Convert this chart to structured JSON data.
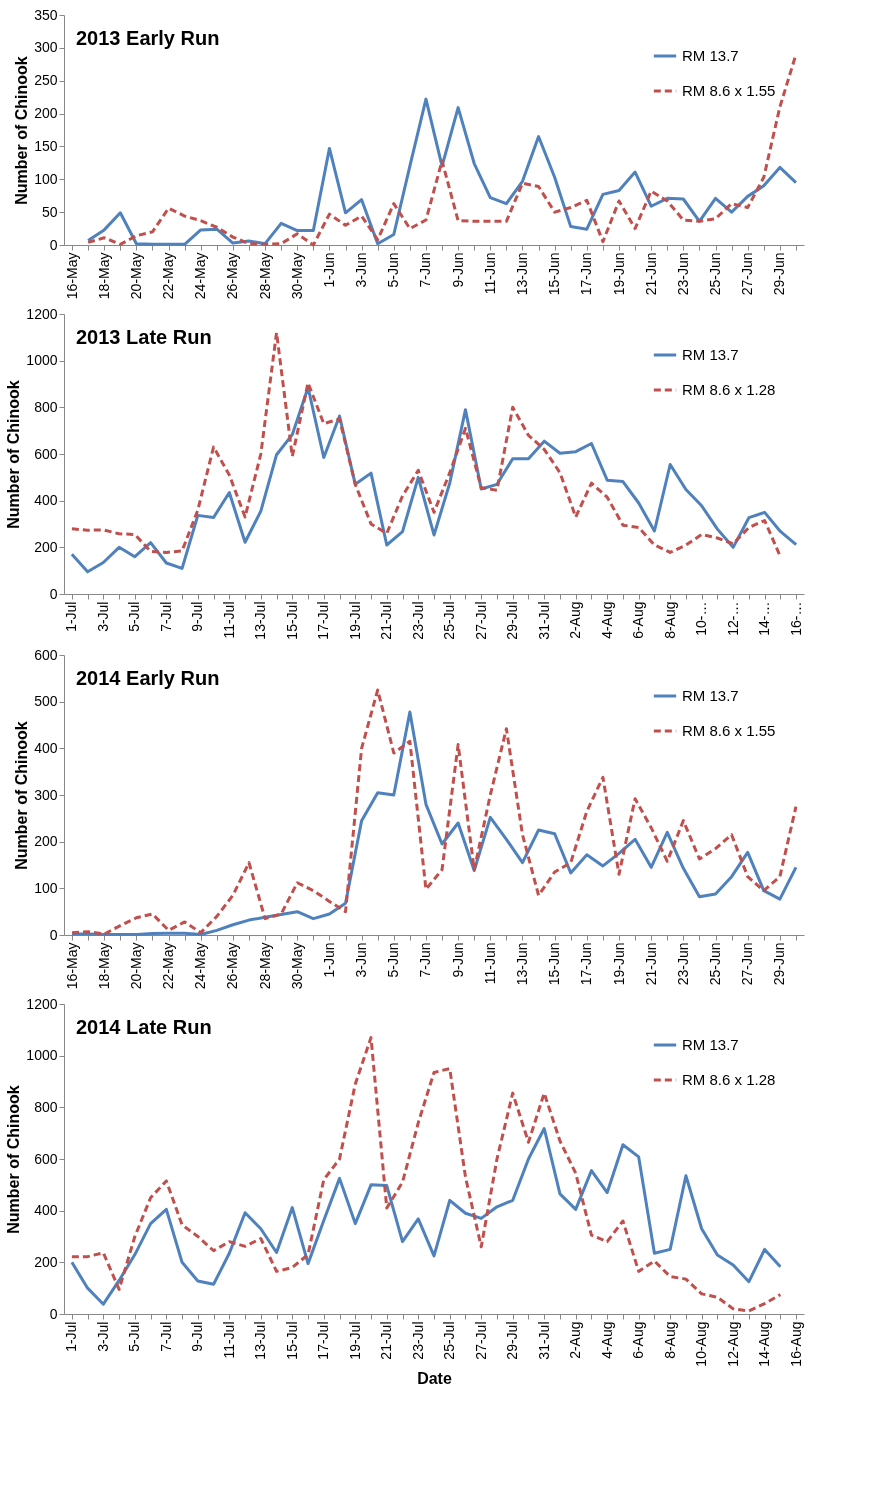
{
  "chart_data": [
    {
      "type": "line",
      "title": "2013 Early Run",
      "ylabel": "Number of Chinook",
      "legend": "top right",
      "grid": false,
      "categories": [
        "16-May",
        null,
        "18-May",
        null,
        "20-May",
        null,
        "22-May",
        null,
        "24-May",
        null,
        "26-May",
        null,
        "28-May",
        null,
        "30-May",
        null,
        "1-Jun",
        null,
        "3-Jun",
        null,
        "5-Jun",
        null,
        "7-Jun",
        null,
        "9-Jun",
        null,
        "11-Jun",
        null,
        "13-Jun",
        null,
        "15-Jun",
        null,
        "17-Jun",
        null,
        "19-Jun",
        null,
        "21-Jun",
        null,
        "23-Jun",
        null,
        "25-Jun",
        null,
        "27-Jun",
        null,
        "29-Jun",
        null
      ],
      "ylim": [
        0,
        350
      ],
      "yticks": [
        0,
        50,
        100,
        150,
        200,
        250,
        300,
        350
      ],
      "series": [
        {
          "name": "RM 13.7",
          "color": "#4f81bd",
          "line_style": "solid",
          "values": [
            null,
            7,
            23,
            49,
            2,
            1,
            1,
            1,
            23,
            24,
            3,
            6,
            2,
            33,
            22,
            22,
            147,
            49,
            69,
            2,
            16,
            120,
            222,
            120,
            209,
            124,
            72,
            63,
            97,
            165,
            103,
            28,
            24,
            77,
            83,
            111,
            59,
            71,
            70,
            36,
            71,
            50,
            74,
            90,
            118,
            95
          ]
        },
        {
          "name": "RM 8.6 x 1.55",
          "color": "#c0504d",
          "line_style": "dashed",
          "values": [
            null,
            4,
            11,
            1,
            14,
            20,
            56,
            44,
            37,
            27,
            12,
            2,
            1,
            2,
            17,
            0,
            47,
            30,
            44,
            8,
            63,
            25,
            38,
            128,
            37,
            36,
            36,
            36,
            94,
            89,
            50,
            57,
            68,
            5,
            67,
            25,
            82,
            67,
            38,
            36,
            40,
            63,
            57,
            103,
            210,
            290
          ]
        }
      ]
    },
    {
      "type": "line",
      "title": "2013 Late Run",
      "ylabel": "Number of Chinook",
      "legend": "top right",
      "grid": false,
      "categories": [
        "1-Jul",
        null,
        "3-Jul",
        null,
        "5-Jul",
        null,
        "7-Jul",
        null,
        "9-Jul",
        null,
        "11-Jul",
        null,
        "13-Jul",
        null,
        "15-Jul",
        null,
        "17-Jul",
        null,
        "19-Jul",
        null,
        "21-Jul",
        null,
        "23-Jul",
        null,
        "25-Jul",
        null,
        "27-Jul",
        null,
        "29-Jul",
        null,
        "31-Jul",
        null,
        "2-Aug",
        null,
        "4-Aug",
        null,
        "6-Aug",
        null,
        "8-Aug",
        null,
        "10-…",
        null,
        "12-…",
        null,
        "14-…",
        null,
        "16-…"
      ],
      "ylim": [
        0,
        1200
      ],
      "yticks": [
        0,
        200,
        400,
        600,
        800,
        {
          "value": 1000,
          "label": "1000"
        },
        {
          "value": 1200,
          "label": "1200"
        }
      ],
      "series": [
        {
          "name": "RM 13.7",
          "color": "#4f81bd",
          "line_style": "solid",
          "values": [
            170,
            95,
            135,
            200,
            160,
            220,
            133,
            110,
            337,
            328,
            435,
            222,
            355,
            597,
            683,
            885,
            585,
            763,
            470,
            518,
            210,
            267,
            500,
            253,
            475,
            790,
            450,
            470,
            580,
            580,
            655,
            603,
            610,
            645,
            488,
            482,
            390,
            270,
            555,
            448,
            378,
            278,
            200,
            327,
            350,
            268,
            212
          ]
        },
        {
          "name": "RM 8.6 x 1.28",
          "color": "#c0504d",
          "line_style": "dashed",
          "values": [
            280,
            273,
            275,
            258,
            255,
            183,
            178,
            185,
            360,
            630,
            510,
            330,
            600,
            1120,
            590,
            905,
            730,
            750,
            470,
            300,
            260,
            420,
            530,
            350,
            520,
            710,
            455,
            445,
            800,
            680,
            620,
            520,
            330,
            475,
            415,
            295,
            285,
            210,
            178,
            210,
            255,
            240,
            215,
            285,
            315,
            160,
            null
          ]
        }
      ]
    },
    {
      "type": "line",
      "title": "2014 Early Run",
      "ylabel": "Number of Chinook",
      "legend": "top right",
      "grid": false,
      "categories": [
        "16-May",
        null,
        "18-May",
        null,
        "20-May",
        null,
        "22-May",
        null,
        "24-May",
        null,
        "26-May",
        null,
        "28-May",
        null,
        "30-May",
        null,
        "1-Jun",
        null,
        "3-Jun",
        null,
        "5-Jun",
        null,
        "7-Jun",
        null,
        "9-Jun",
        null,
        "11-Jun",
        null,
        "13-Jun",
        null,
        "15-Jun",
        null,
        "17-Jun",
        null,
        "19-Jun",
        null,
        "21-Jun",
        null,
        "23-Jun",
        null,
        "25-Jun",
        null,
        "27-Jun",
        null,
        "29-Jun",
        null
      ],
      "ylim": [
        0,
        600
      ],
      "yticks": [
        0,
        100,
        200,
        300,
        400,
        500,
        600
      ],
      "series": [
        {
          "name": "RM 13.7",
          "color": "#4f81bd",
          "line_style": "solid",
          "values": [
            2,
            2,
            1,
            1,
            1,
            3,
            4,
            4,
            1,
            10,
            22,
            32,
            38,
            44,
            50,
            35,
            45,
            68,
            245,
            305,
            300,
            478,
            280,
            195,
            240,
            138,
            252,
            205,
            155,
            225,
            217,
            133,
            172,
            148,
            175,
            205,
            145,
            220,
            143,
            82,
            88,
            125,
            177,
            95,
            77,
            145
          ]
        },
        {
          "name": "RM 8.6 x 1.55",
          "color": "#c0504d",
          "line_style": "dashed",
          "values": [
            5,
            7,
            2,
            20,
            37,
            45,
            10,
            28,
            5,
            40,
            85,
            155,
            35,
            45,
            112,
            95,
            72,
            50,
            400,
            525,
            390,
            415,
            98,
            140,
            408,
            140,
            300,
            442,
            215,
            85,
            135,
            155,
            265,
            338,
            130,
            292,
            230,
            158,
            245,
            163,
            185,
            215,
            125,
            95,
            125,
            275
          ]
        }
      ]
    },
    {
      "type": "line",
      "title": "2014 Late Run",
      "ylabel": "Number of Chinook",
      "xlabel": "Date",
      "legend": "top right",
      "grid": false,
      "categories": [
        "1-Jul",
        null,
        "3-Jul",
        null,
        "5-Jul",
        null,
        "7-Jul",
        null,
        "9-Jul",
        null,
        "11-Jul",
        null,
        "13-Jul",
        null,
        "15-Jul",
        null,
        "17-Jul",
        null,
        "19-Jul",
        null,
        "21-Jul",
        null,
        "23-Jul",
        null,
        "25-Jul",
        null,
        "27-Jul",
        null,
        "29-Jul",
        null,
        "31-Jul",
        null,
        "2-Aug",
        null,
        "4-Aug",
        null,
        "6-Aug",
        null,
        "8-Aug",
        null,
        "10-Aug",
        null,
        "12-Aug",
        null,
        "14-Aug",
        null,
        "16-Aug"
      ],
      "ylim": [
        0,
        1200
      ],
      "yticks": [
        0,
        200,
        400,
        600,
        800,
        {
          "value": 1000,
          "label": "1000"
        },
        {
          "value": 1200,
          "label": "1200"
        }
      ],
      "series": [
        {
          "name": "RM 13.7",
          "color": "#4f81bd",
          "line_style": "solid",
          "values": [
            200,
            100,
            38,
            130,
            230,
            350,
            405,
            200,
            128,
            115,
            235,
            392,
            330,
            238,
            412,
            195,
            362,
            525,
            350,
            500,
            497,
            280,
            368,
            225,
            440,
            390,
            370,
            415,
            440,
            600,
            718,
            465,
            405,
            555,
            470,
            655,
            608,
            235,
            250,
            535,
            330,
            228,
            190,
            125,
            250,
            183,
            null
          ]
        },
        {
          "name": "RM 8.6 x 1.28",
          "color": "#c0504d",
          "line_style": "dashed",
          "values": [
            222,
            222,
            237,
            95,
            300,
            450,
            515,
            345,
            300,
            245,
            280,
            262,
            292,
            165,
            180,
            230,
            520,
            600,
            890,
            1070,
            410,
            510,
            740,
            935,
            950,
            530,
            260,
            600,
            855,
            665,
            855,
            670,
            545,
            305,
            280,
            360,
            165,
            205,
            145,
            135,
            78,
            65,
            20,
            12,
            40,
            75,
            null
          ]
        }
      ]
    }
  ]
}
